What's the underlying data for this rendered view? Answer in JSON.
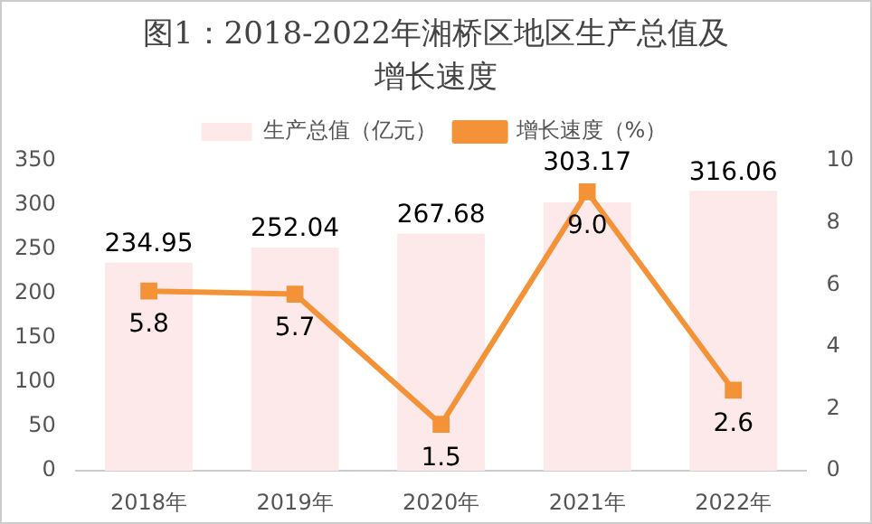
{
  "chart_data": {
    "type": "bar",
    "title": "图1：2018-2022年湘桥区地区生产总值及增长速度",
    "categories": [
      "2018年",
      "2019年",
      "2020年",
      "2021年",
      "2022年"
    ],
    "series": [
      {
        "name": "生产总值（亿元）",
        "color": "#fde9ea",
        "values": [
          234.95,
          252.04,
          267.68,
          303.17,
          316.06
        ],
        "value_labels": [
          "234.95",
          "252.04",
          "267.68",
          "303.17",
          "316.06"
        ]
      },
      {
        "name": "增长速度（%）",
        "type": "line",
        "axis": "y2",
        "color": "#f39237",
        "values": [
          5.8,
          5.7,
          1.5,
          9.0,
          2.6
        ],
        "value_labels": [
          "5.8",
          "5.7",
          "1.5",
          "9.0",
          "2.6"
        ]
      }
    ],
    "ylim": [
      0,
      350
    ],
    "yticks": [
      0,
      50,
      100,
      150,
      200,
      250,
      300,
      350
    ],
    "y2lim": [
      0,
      10
    ],
    "y2ticks": [
      0,
      2,
      4,
      6,
      8,
      10
    ],
    "marker": "square",
    "legend": "top",
    "grid": false
  }
}
